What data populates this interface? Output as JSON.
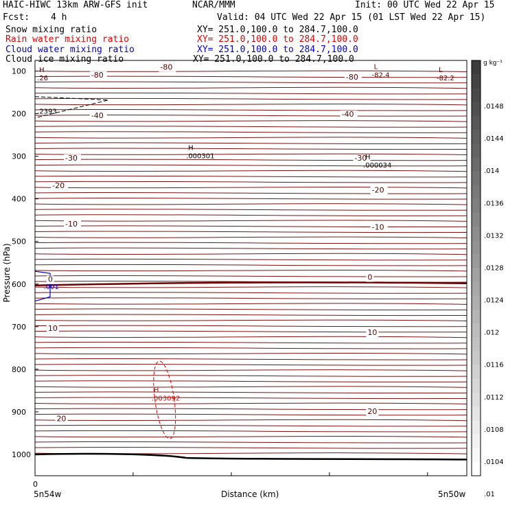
{
  "header": {
    "model": "HAIC-HIWC 13km ARW-GFS init",
    "org": "NCAR/MMM",
    "init": "Init: 00 UTC Wed 22 Apr 15",
    "fcst_label": "Fcst:",
    "fcst_value": "4 h",
    "valid": "Valid: 04 UTC Wed 22 Apr 15 (01 LST Wed 22 Apr 15)"
  },
  "fields": [
    {
      "name": "Snow mixing ratio",
      "xy": "XY= 251.0,100.0 to 284.7,100.0",
      "color": "#000000"
    },
    {
      "name": "Rain water mixing ratio",
      "xy": "XY= 251.0,100.0 to 284.7,100.0",
      "color": "#e00000"
    },
    {
      "name": "Cloud water mixing ratio",
      "xy": "XY= 251.0,100.0 to 284.7,100.0",
      "color": "#0000cc"
    },
    {
      "name": "Cloud ice mixing ratio",
      "xy": "XY= 251.0,100.0 to 284.7,100.0",
      "color": "#000000"
    }
  ],
  "chart_data": {
    "type": "contour-cross-section",
    "xlabel": "Distance (km)",
    "ylabel": "Pressure (hPa)",
    "x_ticks": [
      "0"
    ],
    "x_endpoints": [
      "5n54w",
      "5n50w"
    ],
    "y_ticks": [
      100,
      200,
      300,
      400,
      500,
      600,
      700,
      800,
      900,
      1000
    ],
    "ylim": [
      1050,
      75
    ],
    "temperature_labels": [
      {
        "text": "-80",
        "x": 0.29,
        "p": 97
      },
      {
        "text": "-80",
        "x": 0.13,
        "p": 115
      },
      {
        "text": "-80",
        "x": 0.72,
        "p": 120
      },
      {
        "text": "-40",
        "x": 0.13,
        "p": 210
      },
      {
        "text": "-40",
        "x": 0.71,
        "p": 207
      },
      {
        "text": "-30",
        "x": 0.07,
        "p": 310
      },
      {
        "text": "-30",
        "x": 0.74,
        "p": 310
      },
      {
        "text": "-20",
        "x": 0.04,
        "p": 375
      },
      {
        "text": "-20",
        "x": 0.78,
        "p": 385
      },
      {
        "text": "-10",
        "x": 0.07,
        "p": 465
      },
      {
        "text": "-10",
        "x": 0.78,
        "p": 472
      },
      {
        "text": "0",
        "x": 0.03,
        "p": 595
      },
      {
        "text": "0",
        "x": 0.77,
        "p": 590
      },
      {
        "text": "10",
        "x": 0.03,
        "p": 710
      },
      {
        "text": "10",
        "x": 0.77,
        "p": 720
      },
      {
        "text": "20",
        "x": 0.05,
        "p": 922
      },
      {
        "text": "20",
        "x": 0.77,
        "p": 905
      }
    ],
    "extrema": [
      {
        "mark": "H",
        "value": ".26",
        "x": 0.005,
        "p": 115,
        "color": "#5a0000"
      },
      {
        "mark": "L",
        "value": "-82.4",
        "x": 0.78,
        "p": 108,
        "color": "#5a0000"
      },
      {
        "mark": "L",
        "value": "-82.2",
        "x": 0.93,
        "p": 115,
        "color": "#5a0000"
      },
      {
        "mark": "H",
        "value": ".000301",
        "x": 0.35,
        "p": 298,
        "color": "#000000"
      },
      {
        "mark": "H",
        "value": ".000034",
        "x": 0.76,
        "p": 320,
        "color": "#000000"
      },
      {
        "mark": "H",
        "value": ".003092",
        "x": 0.27,
        "p": 867,
        "color": "#e00000"
      }
    ],
    "other_labels": [
      {
        "text": ".2393",
        "x": 0.005,
        "p": 200,
        "color": "#000000"
      },
      {
        "text": ".001",
        "x": 0.02,
        "p": 612,
        "color": "#0000cc"
      }
    ],
    "colorbar": {
      "unit": "g kg⁻¹",
      "ticks": [
        ".0148",
        ".0144",
        ".014",
        ".0136",
        ".0132",
        ".0128",
        ".0124",
        ".012",
        ".0116",
        ".0112",
        ".0108",
        ".0104",
        ".01"
      ]
    }
  }
}
